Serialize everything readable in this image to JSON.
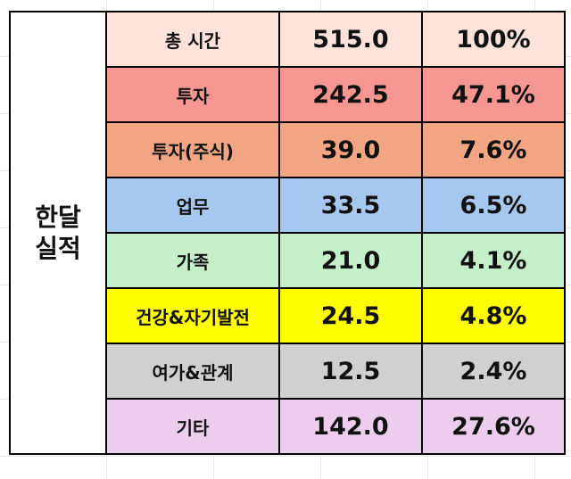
{
  "table": {
    "side_label_line1": "한달",
    "side_label_line2": "실적",
    "rows": [
      {
        "category": "총 시간",
        "hours": "515.0",
        "percent": "100%",
        "color": "#fde3d9"
      },
      {
        "category": "투자",
        "hours": "242.5",
        "percent": "47.1%",
        "color": "#f59790"
      },
      {
        "category": "투자(주식)",
        "hours": "39.0",
        "percent": "7.6%",
        "color": "#f1a583"
      },
      {
        "category": "업무",
        "hours": "33.5",
        "percent": "6.5%",
        "color": "#a6c8ee"
      },
      {
        "category": "가족",
        "hours": "21.0",
        "percent": "4.1%",
        "color": "#c4efc8"
      },
      {
        "category": "건강&자기발전",
        "hours": "24.5",
        "percent": "4.8%",
        "color": "#fffd00"
      },
      {
        "category": "여가&관계",
        "hours": "12.5",
        "percent": "2.4%",
        "color": "#d0d0d0"
      },
      {
        "category": "기타",
        "hours": "142.0",
        "percent": "27.6%",
        "color": "#eccdee"
      }
    ]
  }
}
